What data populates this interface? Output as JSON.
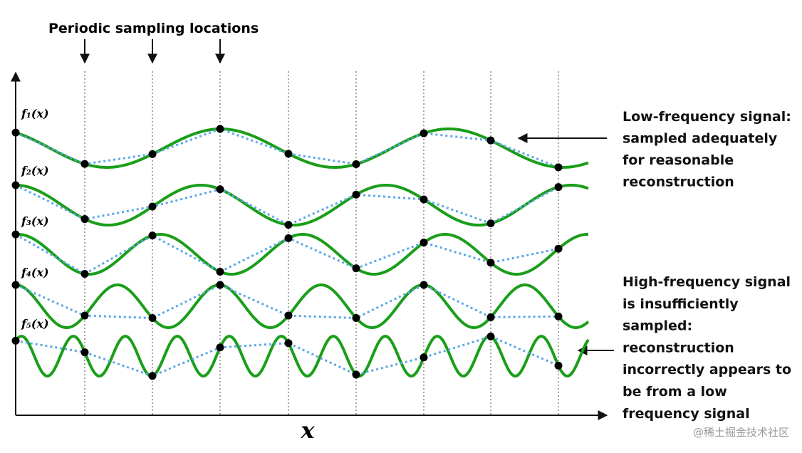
{
  "title": "Periodic sampling locations",
  "signals": [
    {
      "label": "f₁(x)"
    },
    {
      "label": "f₂(x)"
    },
    {
      "label": "f₃(x)"
    },
    {
      "label": "f₄(x)"
    },
    {
      "label": "f₅(x)"
    }
  ],
  "low_annotation": [
    "Low-frequency signal:",
    "sampled adequately",
    "for reasonable",
    "reconstruction"
  ],
  "high_annotation": [
    "High-frequency signal",
    "is insufficiently",
    "sampled:",
    "reconstruction",
    "incorrectly appears to",
    "be from a low",
    "frequency signal"
  ],
  "axis_label": "x",
  "watermark": "@稀土掘金技术社区"
}
